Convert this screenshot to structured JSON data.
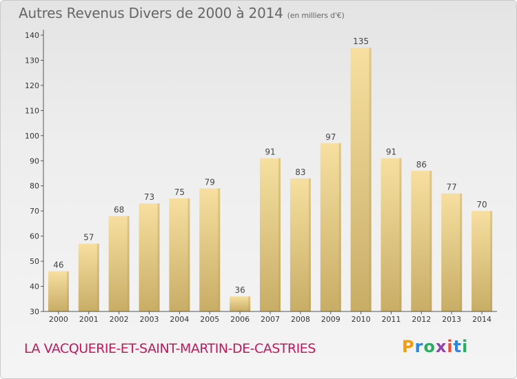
{
  "header": {
    "title": "Autres Revenus Divers de 2000 à 2014",
    "subtitle": "(en milliers d'€)"
  },
  "footer": {
    "commune": "LA VACQUERIE-ET-SAINT-MARTIN-DE-CASTRIES",
    "logo": "Proxiti"
  },
  "chart_data": {
    "type": "bar",
    "categories": [
      "2000",
      "2001",
      "2002",
      "2003",
      "2004",
      "2005",
      "2006",
      "2007",
      "2008",
      "2009",
      "2010",
      "2011",
      "2012",
      "2013",
      "2014"
    ],
    "values": [
      46,
      57,
      68,
      73,
      75,
      79,
      36,
      91,
      83,
      97,
      135,
      91,
      86,
      77,
      70
    ],
    "ylim": [
      30,
      140
    ],
    "yticks": [
      30,
      40,
      50,
      60,
      70,
      80,
      90,
      100,
      110,
      120,
      130,
      140
    ],
    "grid": false,
    "bar_color_light": "#f6dfa0",
    "bar_color_dark": "#c8ad66"
  }
}
